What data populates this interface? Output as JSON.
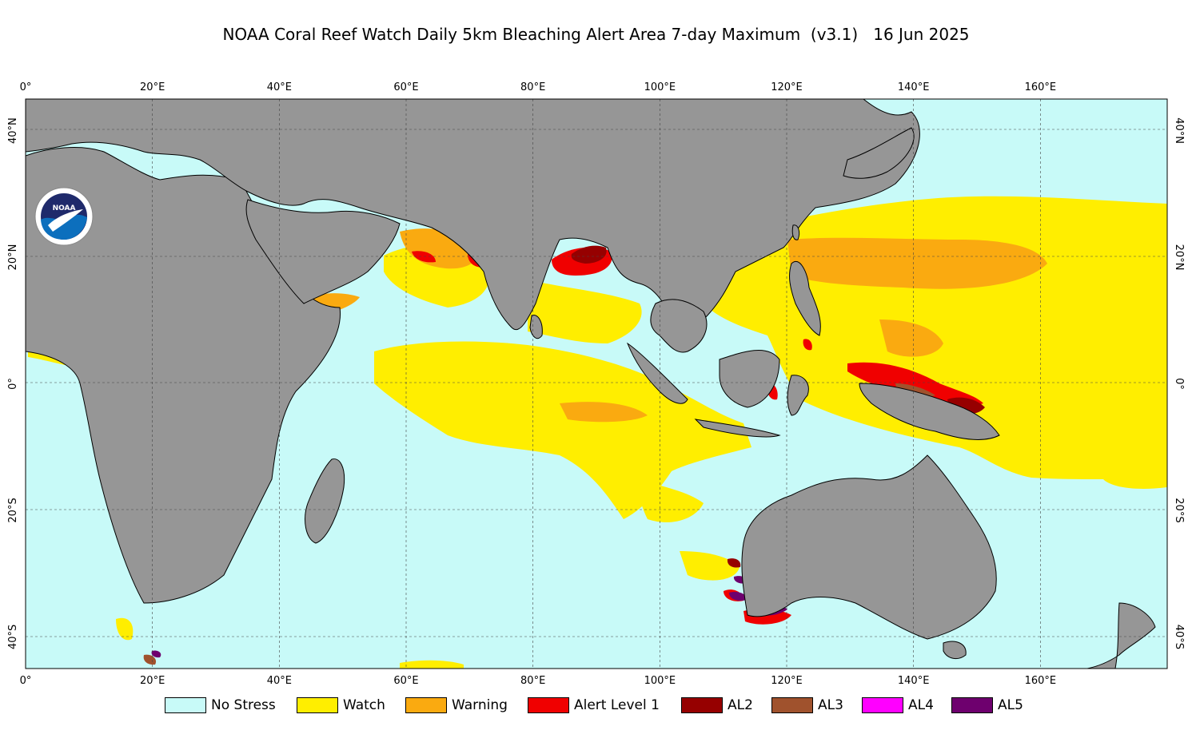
{
  "title": "NOAA Coral Reef Watch Daily 5km Bleaching Alert Area 7-day Maximum  (v3.1)   16 Jun 2025",
  "logo": {
    "text": "NOAA",
    "icon": "noaa-logo-icon"
  },
  "map": {
    "region": "Indian Ocean and Western Pacific",
    "lon_range": [
      0,
      180
    ],
    "lat_range": [
      -45,
      45
    ],
    "ocean_color": "#c8faf8",
    "land_color": "#969696",
    "graticule": true,
    "lon_ticks_top": [
      "0°",
      "20°E",
      "40°E",
      "60°E",
      "80°E",
      "100°E",
      "120°E",
      "140°E",
      "160°E"
    ],
    "lon_ticks_bottom": [
      "0°",
      "20°E",
      "40°E",
      "60°E",
      "80°E",
      "100°E",
      "120°E",
      "140°E",
      "160°E"
    ],
    "lat_ticks_left": [
      "40°N",
      "20°N",
      "0°",
      "20°S",
      "40°S"
    ],
    "lat_ticks_right": [
      "40°N",
      "20°N",
      "0°",
      "20°S",
      "40°S"
    ],
    "lon_values": [
      0,
      20,
      40,
      60,
      80,
      100,
      120,
      140,
      160
    ],
    "lat_values": [
      40,
      20,
      0,
      -20,
      -40
    ]
  },
  "legend": [
    {
      "label": "No Stress",
      "color": "#c8faf8"
    },
    {
      "label": "Watch",
      "color": "#ffee00"
    },
    {
      "label": "Warning",
      "color": "#faaa10"
    },
    {
      "label": "Alert Level 1",
      "color": "#f00000"
    },
    {
      "label": "AL2",
      "color": "#960000"
    },
    {
      "label": "AL3",
      "color": "#a0522d"
    },
    {
      "label": "AL4",
      "color": "#ff00ff"
    },
    {
      "label": "AL5",
      "color": "#6e006e"
    }
  ]
}
